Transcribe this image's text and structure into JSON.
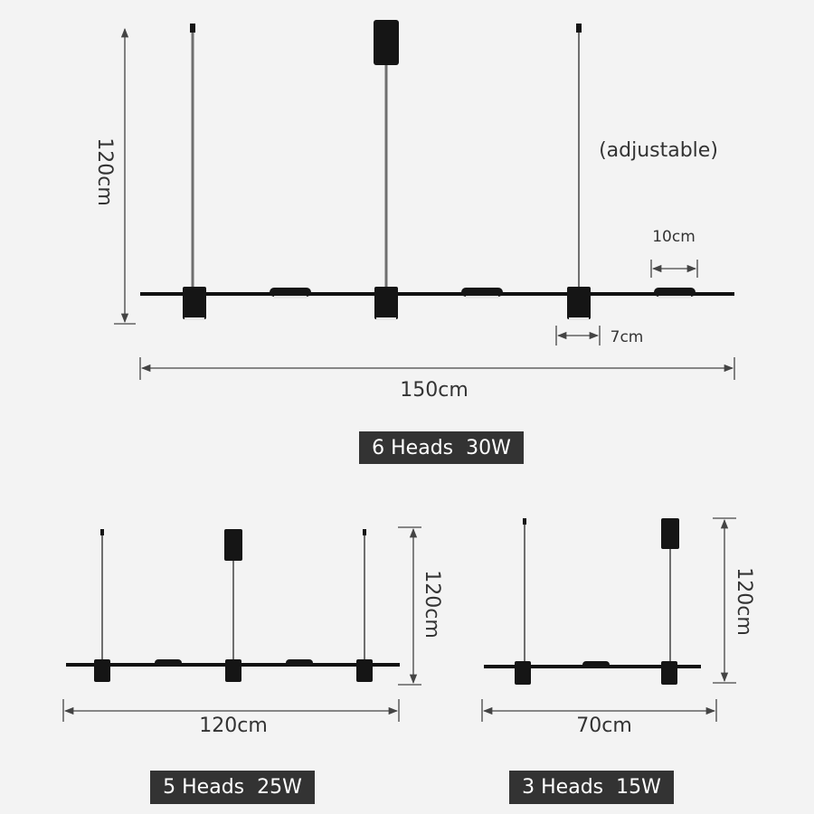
{
  "diagrams": [
    {
      "height": "120cm",
      "width": "150cm",
      "label": "6 Heads  30W",
      "annotations": {
        "adjustable": "(adjustable)",
        "disc_width": "10cm",
        "cylinder_width": "7cm"
      }
    },
    {
      "height": "120cm",
      "width": "120cm",
      "label": "5 Heads  25W"
    },
    {
      "height": "120cm",
      "width": "70cm",
      "label": "3 Heads  15W"
    }
  ]
}
